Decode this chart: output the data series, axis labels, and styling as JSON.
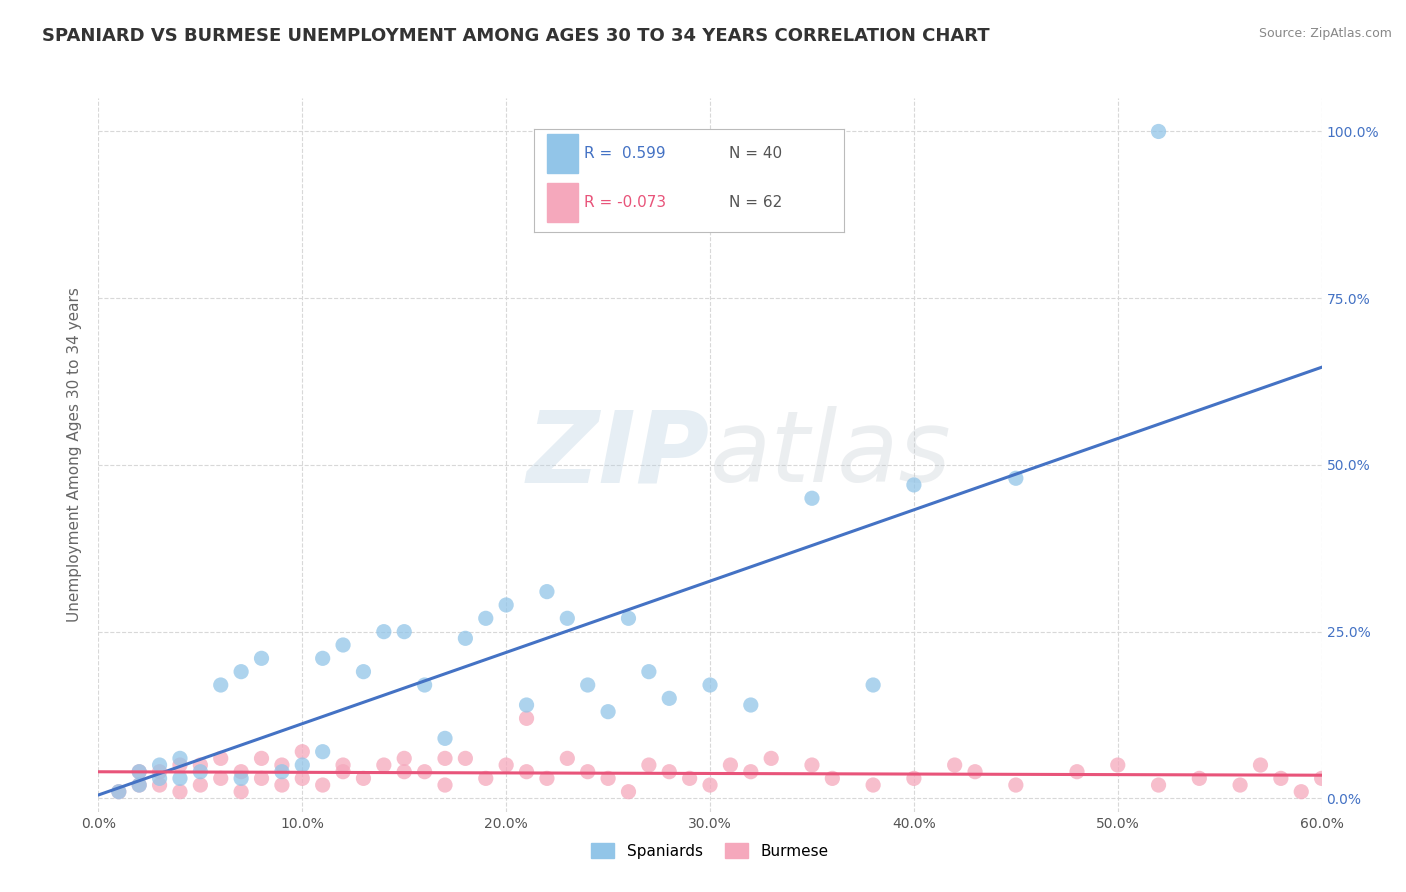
{
  "title": "SPANIARD VS BURMESE UNEMPLOYMENT AMONG AGES 30 TO 34 YEARS CORRELATION CHART",
  "source": "Source: ZipAtlas.com",
  "ylabel": "Unemployment Among Ages 30 to 34 years",
  "xlim": [
    0.0,
    0.6
  ],
  "ylim": [
    -0.02,
    1.05
  ],
  "x_ticks": [
    0.0,
    0.1,
    0.2,
    0.3,
    0.4,
    0.5,
    0.6
  ],
  "x_tick_labels": [
    "0.0%",
    "10.0%",
    "20.0%",
    "30.0%",
    "40.0%",
    "50.0%",
    "60.0%"
  ],
  "y_ticks": [
    0.0,
    0.25,
    0.5,
    0.75,
    1.0
  ],
  "y_tick_labels": [
    "0.0%",
    "25.0%",
    "50.0%",
    "75.0%",
    "100.0%"
  ],
  "spaniards_R": 0.599,
  "spaniards_N": 40,
  "burmese_R": -0.073,
  "burmese_N": 62,
  "spaniards_color": "#92C5E8",
  "burmese_color": "#F5A8BC",
  "spaniards_line_color": "#4472C4",
  "burmese_line_color": "#E8547A",
  "spaniards_x": [
    0.01,
    0.02,
    0.02,
    0.03,
    0.03,
    0.04,
    0.04,
    0.05,
    0.06,
    0.07,
    0.07,
    0.08,
    0.09,
    0.1,
    0.11,
    0.11,
    0.12,
    0.13,
    0.14,
    0.15,
    0.16,
    0.17,
    0.18,
    0.19,
    0.2,
    0.21,
    0.22,
    0.23,
    0.24,
    0.25,
    0.26,
    0.27,
    0.28,
    0.3,
    0.32,
    0.35,
    0.38,
    0.4,
    0.45,
    0.52
  ],
  "spaniards_y": [
    0.01,
    0.02,
    0.04,
    0.03,
    0.05,
    0.03,
    0.06,
    0.04,
    0.17,
    0.03,
    0.19,
    0.21,
    0.04,
    0.05,
    0.21,
    0.07,
    0.23,
    0.19,
    0.25,
    0.25,
    0.17,
    0.09,
    0.24,
    0.27,
    0.29,
    0.14,
    0.31,
    0.27,
    0.17,
    0.13,
    0.27,
    0.19,
    0.15,
    0.17,
    0.14,
    0.45,
    0.17,
    0.47,
    0.48,
    1.0
  ],
  "burmese_x": [
    0.01,
    0.02,
    0.02,
    0.03,
    0.03,
    0.04,
    0.04,
    0.05,
    0.05,
    0.06,
    0.06,
    0.07,
    0.07,
    0.08,
    0.08,
    0.09,
    0.09,
    0.1,
    0.1,
    0.11,
    0.12,
    0.12,
    0.13,
    0.14,
    0.15,
    0.15,
    0.16,
    0.17,
    0.17,
    0.18,
    0.19,
    0.2,
    0.21,
    0.21,
    0.22,
    0.23,
    0.24,
    0.25,
    0.26,
    0.27,
    0.28,
    0.29,
    0.3,
    0.31,
    0.32,
    0.33,
    0.35,
    0.36,
    0.38,
    0.4,
    0.42,
    0.43,
    0.45,
    0.48,
    0.5,
    0.52,
    0.54,
    0.56,
    0.57,
    0.58,
    0.59,
    0.6
  ],
  "burmese_y": [
    0.01,
    0.02,
    0.04,
    0.02,
    0.04,
    0.01,
    0.05,
    0.02,
    0.05,
    0.03,
    0.06,
    0.01,
    0.04,
    0.03,
    0.06,
    0.02,
    0.05,
    0.03,
    0.07,
    0.02,
    0.05,
    0.04,
    0.03,
    0.05,
    0.06,
    0.04,
    0.04,
    0.02,
    0.06,
    0.06,
    0.03,
    0.05,
    0.12,
    0.04,
    0.03,
    0.06,
    0.04,
    0.03,
    0.01,
    0.05,
    0.04,
    0.03,
    0.02,
    0.05,
    0.04,
    0.06,
    0.05,
    0.03,
    0.02,
    0.03,
    0.05,
    0.04,
    0.02,
    0.04,
    0.05,
    0.02,
    0.03,
    0.02,
    0.05,
    0.03,
    0.01,
    0.03
  ],
  "watermark_zip": "ZIP",
  "watermark_atlas": "atlas",
  "background_color": "#FFFFFF",
  "grid_color": "#D8D8D8",
  "title_fontsize": 13,
  "axis_label_fontsize": 11,
  "tick_fontsize": 10
}
